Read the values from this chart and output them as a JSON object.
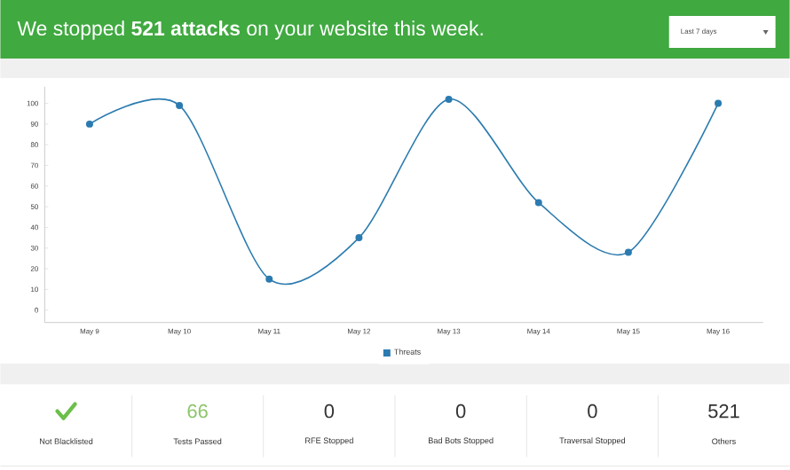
{
  "chart_data": [
    {
      "type": "line",
      "title": "We stopped **521 attacks** on your website this week.",
      "annotations": [
        "Last 7 days"
      ],
      "categories": [
        "May 9",
        "May 10",
        "May 11",
        "May 12",
        "May 13",
        "May 14",
        "May 15",
        "May 16"
      ],
      "series": [
        {
          "name": "Threats",
          "color": "#2b7bb0",
          "values": [
            90,
            99,
            15,
            35,
            102,
            52,
            28,
            100
          ]
        }
      ],
      "ylim": [
        -6,
        108
      ],
      "yticks": [
        0,
        10,
        20,
        30,
        40,
        50,
        60,
        70,
        80,
        90,
        100
      ],
      "marker": "circle",
      "legend": "bottom",
      "grid": false
    },
    {
      "type": "other",
      "categories": [
        "Not Blacklisted",
        "Tests Passed",
        "RFE Stopped",
        "Bad Bots Stopped",
        "Traversal Stopped",
        "Others"
      ],
      "values": [
        null,
        66,
        0,
        0,
        0,
        521
      ],
      "data_labels": true,
      "colors": [
        "#6cbf4a",
        "#8cc56b",
        "#333333",
        "#333333",
        "#333333",
        "#333333"
      ]
    }
  ]
}
